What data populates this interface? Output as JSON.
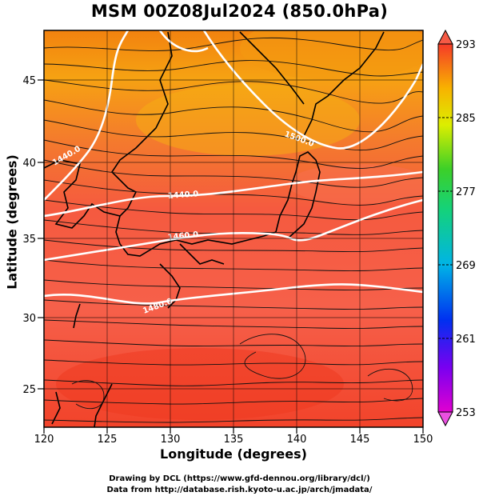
{
  "title": "MSM 00Z08Jul2024 (850.0hPa)",
  "axes": {
    "xlabel": "Longitude (degrees)",
    "ylabel": "Latitude  (degrees)",
    "xlim": [
      120,
      150
    ],
    "ylim": [
      22.4,
      47.6
    ],
    "x_ticks": [
      "120",
      "125",
      "130",
      "135",
      "140",
      "145",
      "150"
    ],
    "y_ticks": [
      "25",
      "30",
      "35",
      "40",
      "45"
    ]
  },
  "colorbar": {
    "range": [
      253,
      293
    ],
    "labels": [
      "293",
      "285",
      "277",
      "269",
      "261",
      "253"
    ]
  },
  "contours": [
    {
      "label": "1440.0"
    },
    {
      "label": "1500.0"
    },
    {
      "label": "1440.0"
    },
    {
      "label": "1460.0"
    },
    {
      "label": "1480.0"
    }
  ],
  "credits": {
    "line1": "Drawing by DCL (https://www.gfd-dennou.org/library/dcl/)",
    "line2": "Data from http://database.rish.kyoto-u.ac.jp/arch/jmadata/"
  },
  "colors": {
    "warm_north": "#f5a011",
    "warm_mid": "#f76b3c",
    "warm_south": "#f74a2a",
    "contour": "#ffffff",
    "streamline": "#111111",
    "coast": "#000000"
  }
}
